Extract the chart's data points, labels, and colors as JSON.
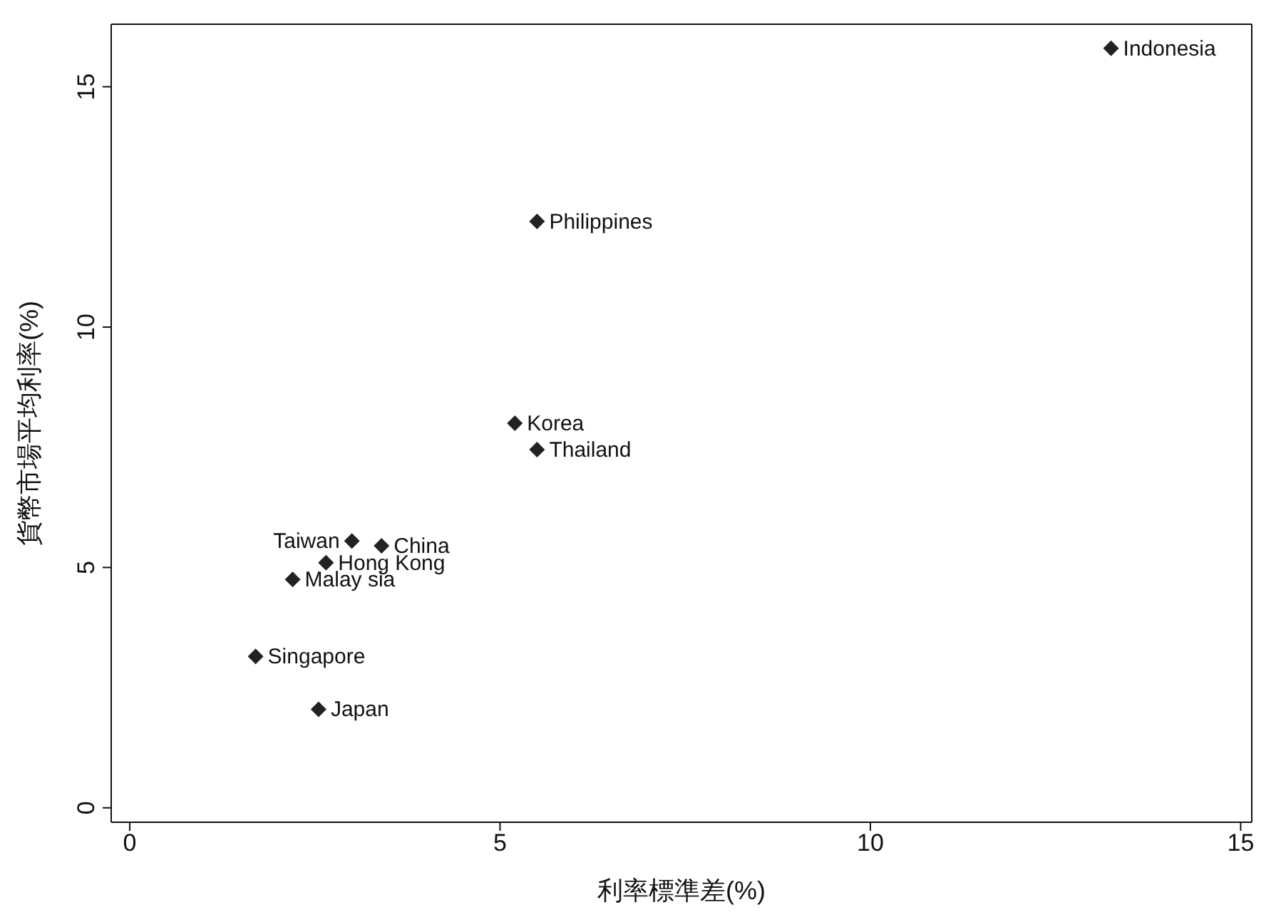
{
  "chart_data": {
    "type": "scatter",
    "xlabel": "利率標準差(%)",
    "ylabel": "貨幣市場平均利率(%)",
    "x": [
      13.25,
      5.5,
      5.2,
      5.5,
      3.0,
      3.4,
      2.65,
      2.2,
      1.7,
      2.55
    ],
    "values": [
      15.8,
      12.2,
      8.0,
      7.45,
      5.55,
      5.45,
      5.1,
      4.75,
      3.15,
      2.05
    ],
    "value_labels": [
      "Indonesia",
      "Philippines",
      "Korea",
      "Thailand",
      "Taiwan",
      "China",
      "Hong Kong",
      "Malay sia",
      "Singapore",
      "Japan"
    ],
    "color": "#222222",
    "marker": "diamond",
    "xlim": [
      -0.25,
      15.15
    ],
    "xticks": [
      0,
      5,
      10,
      15
    ],
    "ylim": [
      -0.3,
      16.3
    ],
    "yticks": [
      0,
      5,
      10,
      15
    ]
  }
}
